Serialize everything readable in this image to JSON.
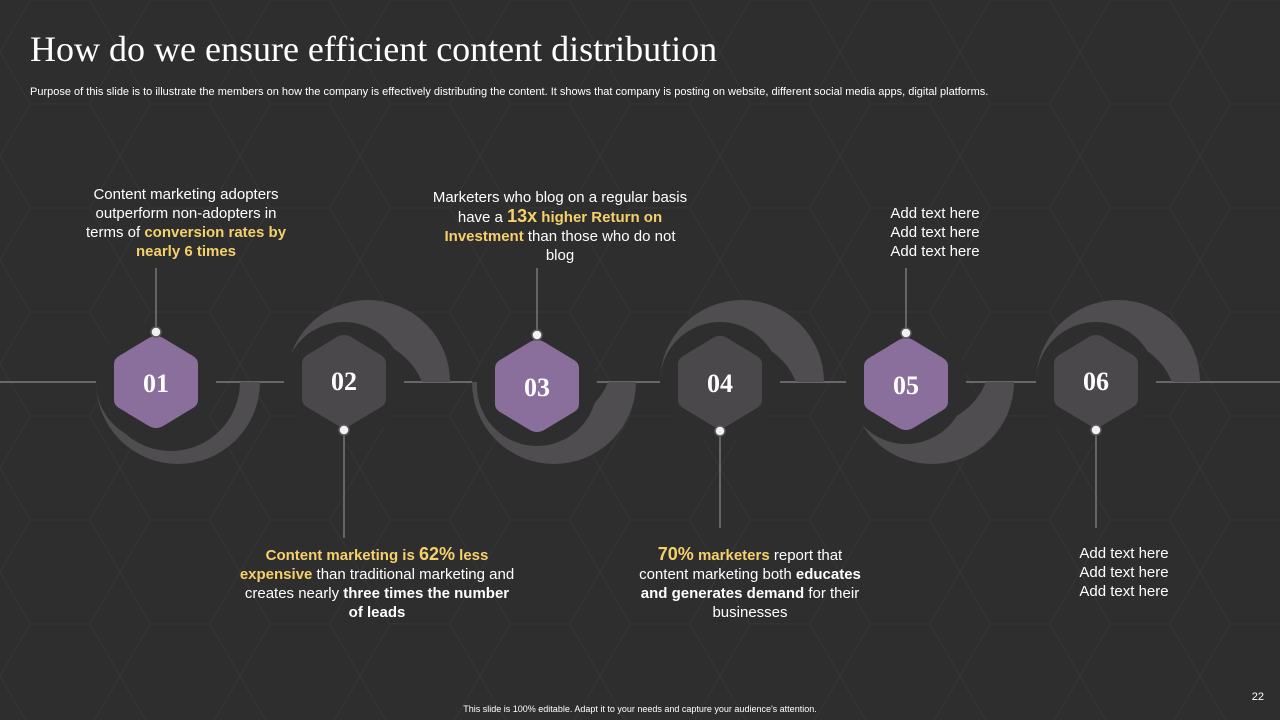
{
  "slide": {
    "title": "How do we ensure efficient content distribution",
    "subtitle": "Purpose of this slide is to illustrate the members on how the company is effectively  distributing the content. It shows that company is posting on website, different social media apps, digital platforms.",
    "footer": "This slide is 100% editable.  Adapt it to your needs and capture your audience's attention.",
    "page_number": "22"
  },
  "colors": {
    "background": "#2f2e2f",
    "purple_hex": "#8a6e9b",
    "dark_hex": "#4a484b",
    "arc": "#4f4d50",
    "highlight": "#f5d06b"
  },
  "steps": [
    {
      "number": "01",
      "text": [
        {
          "t": "Content marketing adopters outperform non-adopters in terms of ",
          "s": "plain"
        },
        {
          "t": "conversion rates by nearly 6 times",
          "s": "hl"
        }
      ]
    },
    {
      "number": "02",
      "text": [
        {
          "t": "Content marketing is ",
          "s": "hl"
        },
        {
          "t": "62%",
          "s": "hl-big"
        },
        {
          "t": " less expensive",
          "s": "hl"
        },
        {
          "t": " than traditional marketing and creates nearly ",
          "s": "plain"
        },
        {
          "t": "three times the number of leads",
          "s": "b"
        }
      ]
    },
    {
      "number": "03",
      "text": [
        {
          "t": "Marketers who blog on a regular basis have a ",
          "s": "plain"
        },
        {
          "t": "13x",
          "s": "hl-big"
        },
        {
          "t": " higher Return on Investment",
          "s": "hl"
        },
        {
          "t": " than those who do not blog",
          "s": "plain"
        }
      ]
    },
    {
      "number": "04",
      "text": [
        {
          "t": "70%",
          "s": "hl-big"
        },
        {
          "t": " marketers",
          "s": "hl"
        },
        {
          "t": " report that content marketing both ",
          "s": "plain"
        },
        {
          "t": "educates and generates demand",
          "s": "b"
        },
        {
          "t": " for their businesses",
          "s": "plain"
        }
      ]
    },
    {
      "number": "05",
      "lines": [
        "Add text here",
        "Add text here",
        "Add text here"
      ]
    },
    {
      "number": "06",
      "lines": [
        "Add text here",
        "Add text here",
        "Add text here"
      ]
    }
  ]
}
